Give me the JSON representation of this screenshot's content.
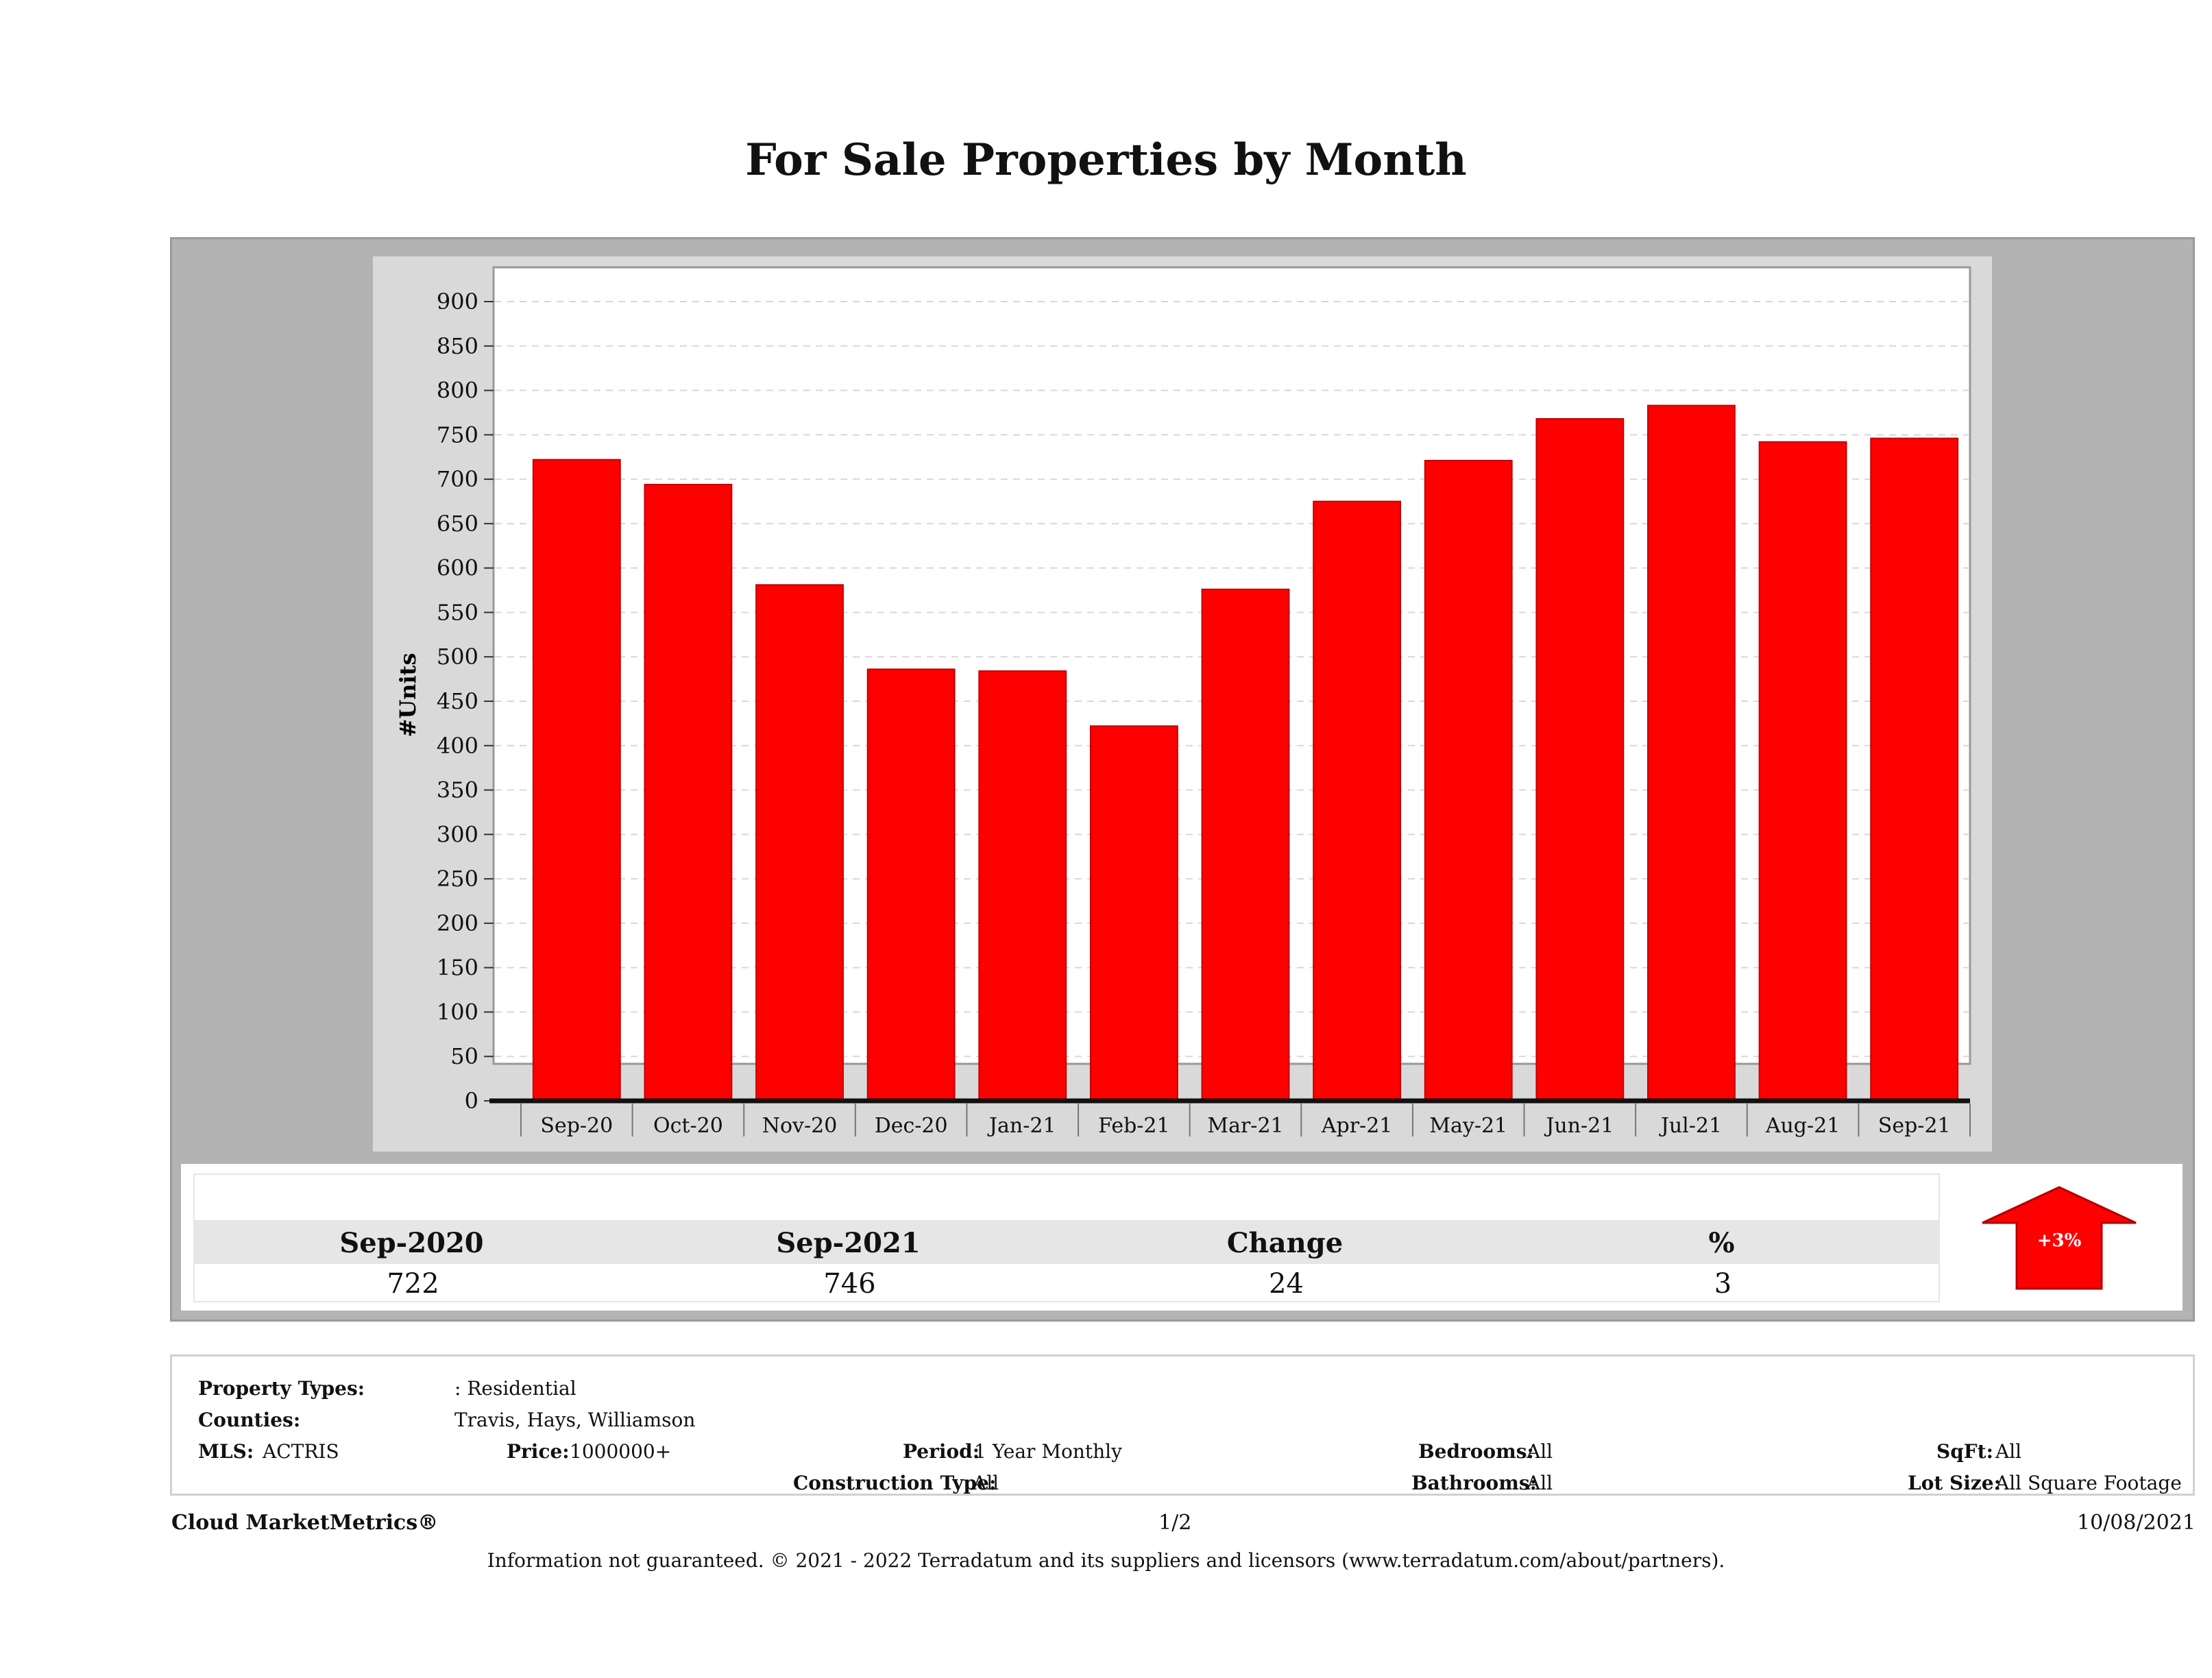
{
  "title": "For Sale Properties by Month",
  "chart_data": {
    "type": "bar",
    "title": "For Sale Properties by Month",
    "ylabel": "#Units",
    "xlabel": "",
    "ylim": [
      0,
      900
    ],
    "yticks": [
      0,
      50,
      100,
      150,
      200,
      250,
      300,
      350,
      400,
      450,
      500,
      550,
      600,
      650,
      700,
      750,
      800,
      850,
      900
    ],
    "categories": [
      "Sep-20",
      "Oct-20",
      "Nov-20",
      "Dec-20",
      "Jan-21",
      "Feb-21",
      "Mar-21",
      "Apr-21",
      "May-21",
      "Jun-21",
      "Jul-21",
      "Aug-21",
      "Sep-21"
    ],
    "values": [
      722,
      694,
      581,
      486,
      484,
      422,
      576,
      675,
      721,
      768,
      783,
      742,
      746
    ],
    "bar_color": "#ff0000",
    "grid": true
  },
  "summary": {
    "headers": [
      "Sep-2020",
      "Sep-2021",
      "Change",
      "%"
    ],
    "values": [
      "722",
      "746",
      "24",
      "3"
    ],
    "badge": "+3%",
    "badge_color": "#ff0000"
  },
  "info": {
    "property_types_label": "Property Types:",
    "property_types_value": ": Residential",
    "counties_label": "Counties:",
    "counties_value": "Travis, Hays, Williamson",
    "mls_label": "MLS:",
    "mls_value": "ACTRIS",
    "price_label": "Price:",
    "price_value": "1000000+",
    "period_label": "Period:",
    "period_value": "1 Year Monthly",
    "construction_label": "Construction Type:",
    "construction_value": "All",
    "bedrooms_label": "Bedrooms:",
    "bedrooms_value": "All",
    "bathrooms_label": "Bathrooms:",
    "bathrooms_value": "All",
    "sqft_label": "SqFt:",
    "sqft_value": "All",
    "lotsize_label": "Lot Size:",
    "lotsize_value": "All Square Footage"
  },
  "footer": {
    "brand": "Cloud MarketMetrics®",
    "page": "1/2",
    "date": "10/08/2021",
    "disclaimer": "Information not guaranteed. © 2021 - 2022 Terradatum and its suppliers and licensors (www.terradatum.com/about/partners)."
  }
}
